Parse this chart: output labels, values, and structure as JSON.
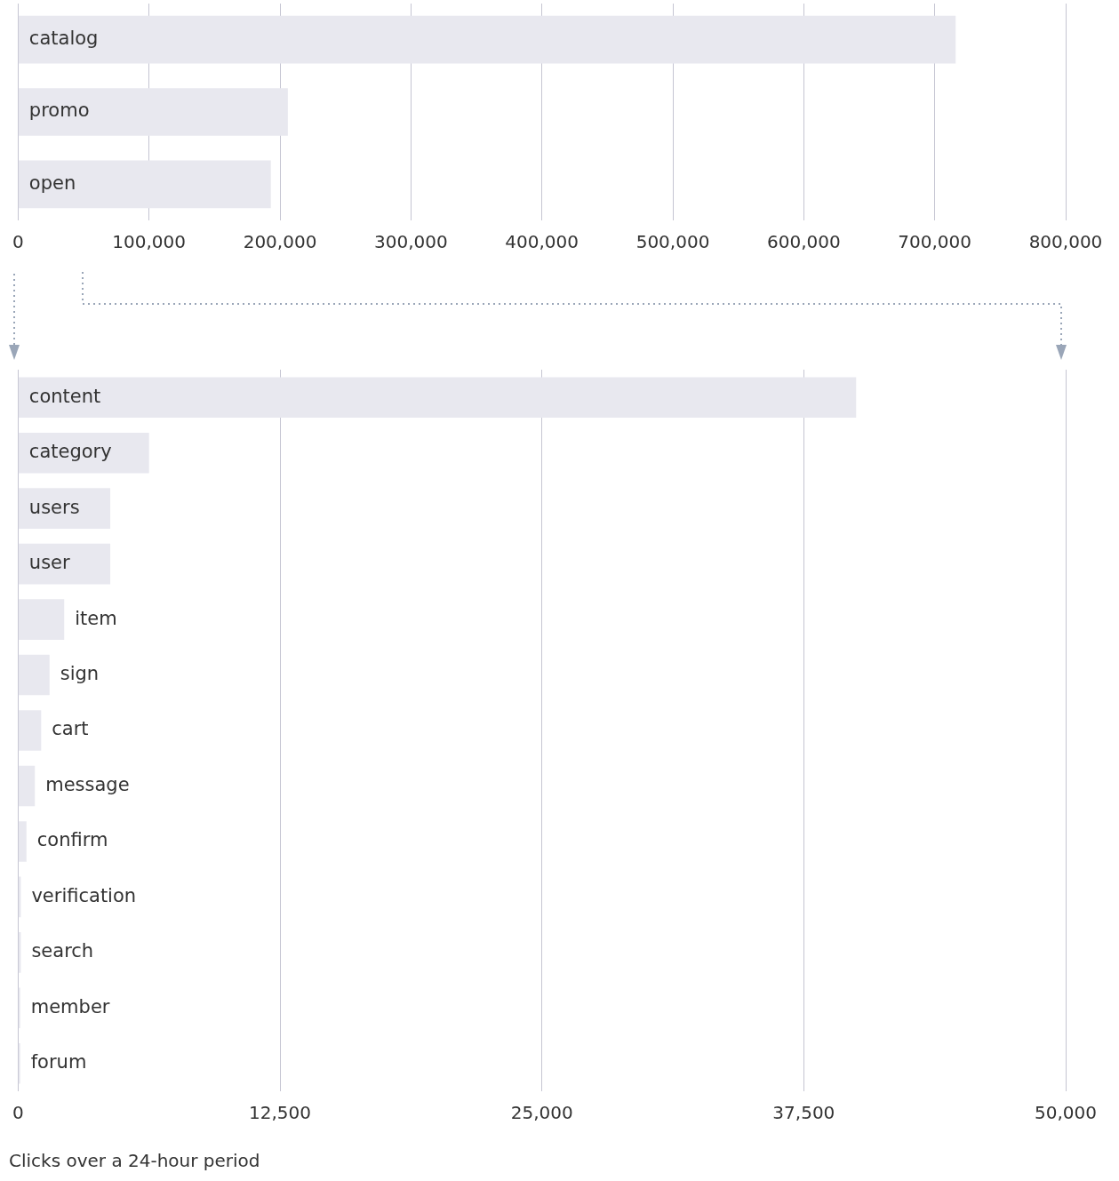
{
  "chart_data": [
    {
      "type": "bar",
      "orientation": "horizontal",
      "categories": [
        "catalog",
        "promo",
        "open"
      ],
      "values": [
        716000,
        206000,
        193000
      ],
      "color": "#e8e8ef",
      "xlim": [
        0,
        800000
      ],
      "xticks": [
        0,
        {
          "value": 100000,
          "label": "100,000"
        },
        {
          "value": 200000,
          "label": "200,000"
        },
        {
          "value": 300000,
          "label": "300,000"
        },
        {
          "value": 400000,
          "label": "400,000"
        },
        {
          "value": 500000,
          "label": "500,000"
        },
        {
          "value": 600000,
          "label": "600,000"
        },
        {
          "value": 700000,
          "label": "700,000"
        },
        {
          "value": 800000,
          "label": "800,000"
        }
      ],
      "grid": "x"
    },
    {
      "type": "bar",
      "orientation": "horizontal",
      "categories": [
        "content",
        "category",
        "users",
        "user",
        "item",
        "sign",
        "cart",
        "message",
        "confirm",
        "verification",
        "search",
        "member",
        "forum"
      ],
      "values": [
        40000,
        6250,
        4400,
        4400,
        2200,
        1500,
        1100,
        800,
        400,
        130,
        130,
        100,
        100
      ],
      "color": "#e8e8ef",
      "xlim": [
        0,
        50000
      ],
      "xticks": [
        0,
        {
          "value": 12500,
          "label": "12,500"
        },
        {
          "value": 25000,
          "label": "25,000"
        },
        {
          "value": 37500,
          "label": "37,500"
        },
        {
          "value": 50000,
          "label": "50,000"
        }
      ],
      "grid": "x",
      "annotations": [
        "Clicks over a 24-hour period"
      ]
    }
  ]
}
